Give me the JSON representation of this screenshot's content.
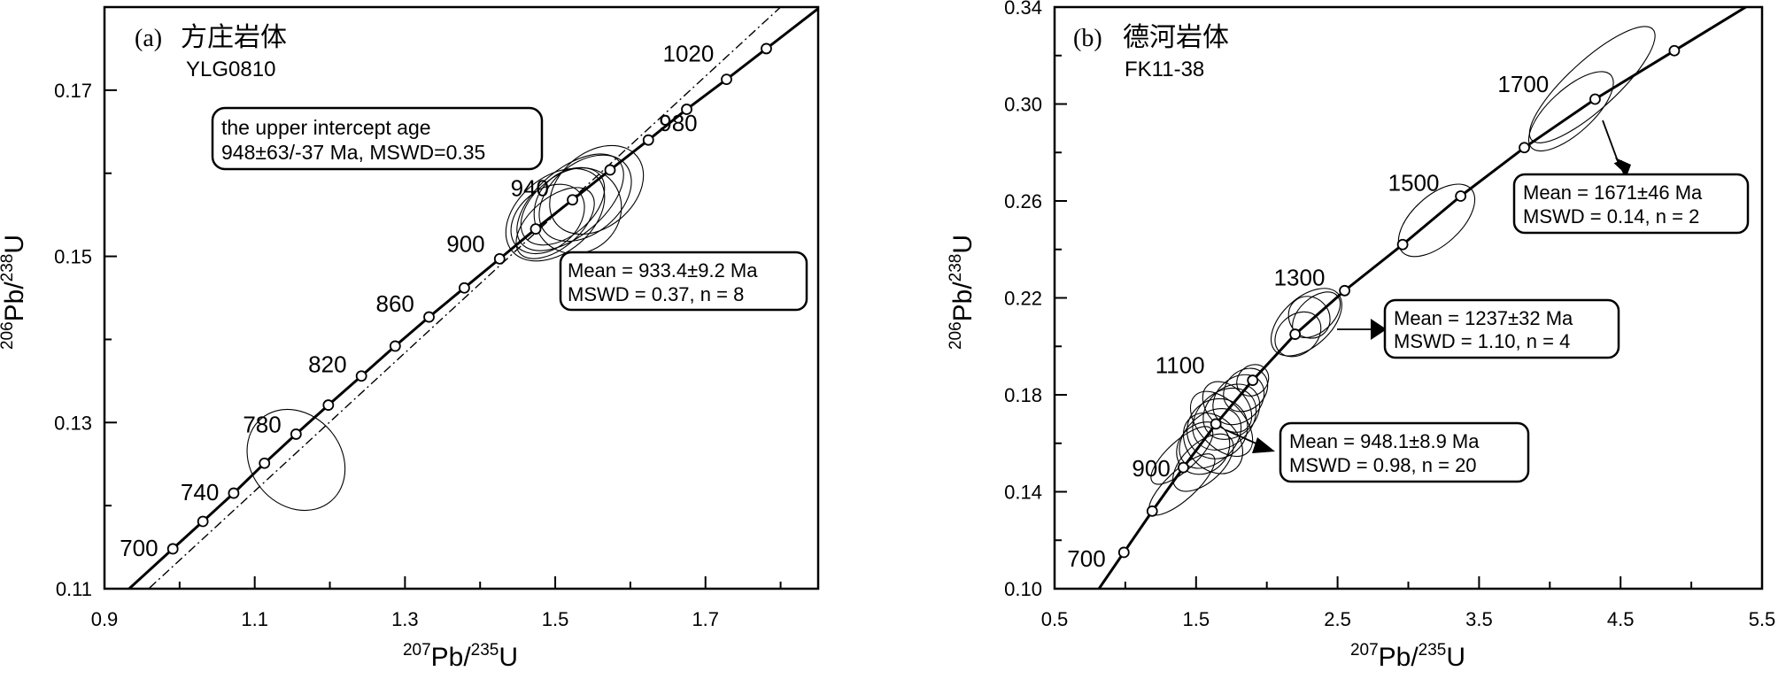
{
  "chart_data": [
    {
      "type": "scatter",
      "panel_label": "(a)",
      "title": "方庄岩体",
      "subtitle": "YLG0810",
      "xlabel": {
        "pre": "207",
        "mid": "Pb/",
        "sup2": "235",
        "post": "U"
      },
      "ylabel": {
        "pre": "206",
        "mid": "Pb/",
        "sup2": "238",
        "post": "U"
      },
      "xlim": [
        0.9,
        1.85
      ],
      "ylim": [
        0.11,
        0.18
      ],
      "xticks": [
        0.9,
        1.1,
        1.3,
        1.5,
        1.7
      ],
      "yticks": [
        0.11,
        0.13,
        0.15,
        0.17
      ],
      "xtick_labels": [
        "0.9",
        "1.1",
        "1.3",
        "1.5",
        "1.7"
      ],
      "ytick_labels": [
        "0.11",
        "0.13",
        "0.15",
        "0.17"
      ],
      "concordia_points": [
        {
          "x": 0.991,
          "y": 0.1148,
          "label": "700"
        },
        {
          "x": 1.031,
          "y": 0.1181
        },
        {
          "x": 1.072,
          "y": 0.1215,
          "label": "740"
        },
        {
          "x": 1.113,
          "y": 0.1251
        },
        {
          "x": 1.155,
          "y": 0.1286,
          "label": "780"
        },
        {
          "x": 1.198,
          "y": 0.1321
        },
        {
          "x": 1.242,
          "y": 0.1356,
          "label": "820"
        },
        {
          "x": 1.287,
          "y": 0.1392
        },
        {
          "x": 1.332,
          "y": 0.1427,
          "label": "860"
        },
        {
          "x": 1.379,
          "y": 0.1462
        },
        {
          "x": 1.426,
          "y": 0.1497,
          "label": "900"
        },
        {
          "x": 1.474,
          "y": 0.1533
        },
        {
          "x": 1.523,
          "y": 0.1568,
          "label": "940"
        },
        {
          "x": 1.573,
          "y": 0.1604
        },
        {
          "x": 1.624,
          "y": 0.164,
          "label": "980"
        },
        {
          "x": 1.675,
          "y": 0.1677
        },
        {
          "x": 1.728,
          "y": 0.1713,
          "label": "1020"
        },
        {
          "x": 1.781,
          "y": 0.175
        }
      ],
      "discordia_line": {
        "x": [
          0.96,
          1.8
        ],
        "y": [
          0.1101,
          0.18
        ]
      },
      "ellipses": [
        {
          "cx": 1.155,
          "cy": 0.1255,
          "rx": 0.06,
          "ry": 0.0065
        },
        {
          "cx": 1.5,
          "cy": 0.155,
          "rx": 0.075,
          "ry": 0.0045
        },
        {
          "cx": 1.52,
          "cy": 0.1565,
          "rx": 0.085,
          "ry": 0.004
        },
        {
          "cx": 1.51,
          "cy": 0.156,
          "rx": 0.065,
          "ry": 0.0035
        },
        {
          "cx": 1.53,
          "cy": 0.1555,
          "rx": 0.06,
          "ry": 0.005
        },
        {
          "cx": 1.49,
          "cy": 0.1545,
          "rx": 0.055,
          "ry": 0.0035
        },
        {
          "cx": 1.54,
          "cy": 0.157,
          "rx": 0.07,
          "ry": 0.0042
        },
        {
          "cx": 1.5,
          "cy": 0.154,
          "rx": 0.062,
          "ry": 0.003
        },
        {
          "cx": 1.555,
          "cy": 0.158,
          "rx": 0.07,
          "ry": 0.0045
        }
      ],
      "annotations": [
        {
          "lines": [
            "the upper intercept age",
            "948±63/-37 Ma, MSWD=0.35"
          ]
        },
        {
          "lines": [
            "Mean = 933.4±9.2 Ma",
            "MSWD = 0.37, n = 8"
          ]
        }
      ]
    },
    {
      "type": "scatter",
      "panel_label": "(b)",
      "title": "德河岩体",
      "subtitle": "FK11-38",
      "xlabel": {
        "pre": "207",
        "mid": "Pb/",
        "sup2": "235",
        "post": "U"
      },
      "ylabel": {
        "pre": "206",
        "mid": "Pb/",
        "sup2": "238",
        "post": "U"
      },
      "xlim": [
        0.5,
        5.5
      ],
      "ylim": [
        0.1,
        0.34
      ],
      "xticks": [
        0.5,
        1.5,
        2.5,
        3.5,
        4.5,
        5.5
      ],
      "yticks": [
        0.1,
        0.14,
        0.18,
        0.22,
        0.26,
        0.3,
        0.34
      ],
      "xtick_labels": [
        "0.5",
        "1.5",
        "2.5",
        "3.5",
        "4.5",
        "5.5"
      ],
      "ytick_labels": [
        "0.10",
        "0.14",
        "0.18",
        "0.22",
        "0.26",
        "0.30",
        "0.34"
      ],
      "concordia_points": [
        {
          "x": 0.99,
          "y": 0.115,
          "label": "700"
        },
        {
          "x": 1.19,
          "y": 0.132
        },
        {
          "x": 1.41,
          "y": 0.15,
          "label": "900"
        },
        {
          "x": 1.64,
          "y": 0.168
        },
        {
          "x": 1.9,
          "y": 0.186,
          "label": "1100"
        },
        {
          "x": 2.2,
          "y": 0.205
        },
        {
          "x": 2.55,
          "y": 0.223,
          "label": "1300"
        },
        {
          "x": 2.96,
          "y": 0.242
        },
        {
          "x": 3.37,
          "y": 0.262,
          "label": "1500"
        },
        {
          "x": 3.82,
          "y": 0.282
        },
        {
          "x": 4.32,
          "y": 0.302,
          "label": "1700"
        },
        {
          "x": 4.88,
          "y": 0.322
        }
      ],
      "ellipses": [
        {
          "cx": 1.4,
          "cy": 0.143,
          "rx": 0.3,
          "ry": 0.006
        },
        {
          "cx": 1.4,
          "cy": 0.155,
          "rx": 0.28,
          "ry": 0.006
        },
        {
          "cx": 1.55,
          "cy": 0.158,
          "rx": 0.2,
          "ry": 0.01
        },
        {
          "cx": 1.6,
          "cy": 0.162,
          "rx": 0.25,
          "ry": 0.01
        },
        {
          "cx": 1.65,
          "cy": 0.166,
          "rx": 0.22,
          "ry": 0.012
        },
        {
          "cx": 1.7,
          "cy": 0.17,
          "rx": 0.25,
          "ry": 0.011
        },
        {
          "cx": 1.75,
          "cy": 0.173,
          "rx": 0.22,
          "ry": 0.01
        },
        {
          "cx": 1.62,
          "cy": 0.16,
          "rx": 0.18,
          "ry": 0.014
        },
        {
          "cx": 1.68,
          "cy": 0.168,
          "rx": 0.16,
          "ry": 0.016
        },
        {
          "cx": 1.8,
          "cy": 0.178,
          "rx": 0.2,
          "ry": 0.009
        },
        {
          "cx": 1.85,
          "cy": 0.182,
          "rx": 0.17,
          "ry": 0.008
        },
        {
          "cx": 1.9,
          "cy": 0.186,
          "rx": 0.12,
          "ry": 0.006
        },
        {
          "cx": 1.55,
          "cy": 0.152,
          "rx": 0.26,
          "ry": 0.008
        },
        {
          "cx": 1.72,
          "cy": 0.175,
          "rx": 0.14,
          "ry": 0.012
        },
        {
          "cx": 2.28,
          "cy": 0.21,
          "rx": 0.3,
          "ry": 0.01
        },
        {
          "cx": 2.22,
          "cy": 0.205,
          "rx": 0.18,
          "ry": 0.008
        },
        {
          "cx": 2.35,
          "cy": 0.213,
          "rx": 0.2,
          "ry": 0.007
        },
        {
          "cx": 2.3,
          "cy": 0.212,
          "rx": 0.14,
          "ry": 0.009
        },
        {
          "cx": 3.2,
          "cy": 0.252,
          "rx": 0.33,
          "ry": 0.01
        },
        {
          "cx": 4.15,
          "cy": 0.297,
          "rx": 0.38,
          "ry": 0.009
        },
        {
          "cx": 4.3,
          "cy": 0.308,
          "rx": 0.58,
          "ry": 0.01
        }
      ],
      "annotations": [
        {
          "lines": [
            "Mean = 1671±46 Ma",
            "MSWD = 0.14, n = 2"
          ]
        },
        {
          "lines": [
            "Mean = 1237±32 Ma",
            "MSWD = 1.10, n = 4"
          ]
        },
        {
          "lines": [
            "Mean = 948.1±8.9 Ma",
            "MSWD = 0.98, n = 20"
          ]
        }
      ]
    }
  ]
}
